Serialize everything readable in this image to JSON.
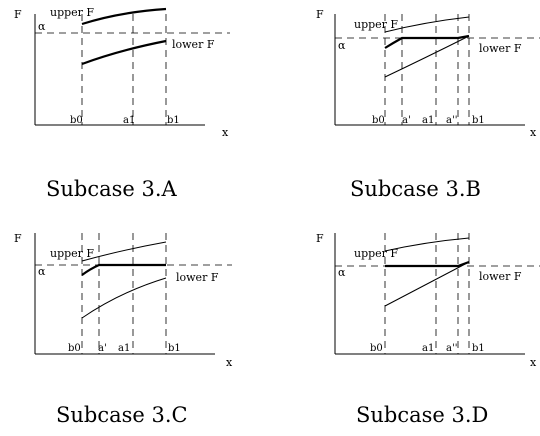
{
  "labels": {
    "y_axis": "F",
    "x_axis": "x",
    "alpha": "α",
    "upper": "upper F",
    "lower": "lower F"
  },
  "panels": [
    {
      "id": "A",
      "caption": "Subcase 3.A",
      "ticks": [
        "b0",
        "a1",
        "b1"
      ]
    },
    {
      "id": "B",
      "caption": "Subcase 3.B",
      "ticks": [
        "b0",
        "a'",
        "a1",
        "a''",
        "b1"
      ]
    },
    {
      "id": "C",
      "caption": "Subcase 3.C",
      "ticks": [
        "b0",
        "a'",
        "a1",
        "b1"
      ]
    },
    {
      "id": "D",
      "caption": "Subcase 3.D",
      "ticks": [
        "b0",
        "a1",
        "a''",
        "b1"
      ]
    }
  ]
}
